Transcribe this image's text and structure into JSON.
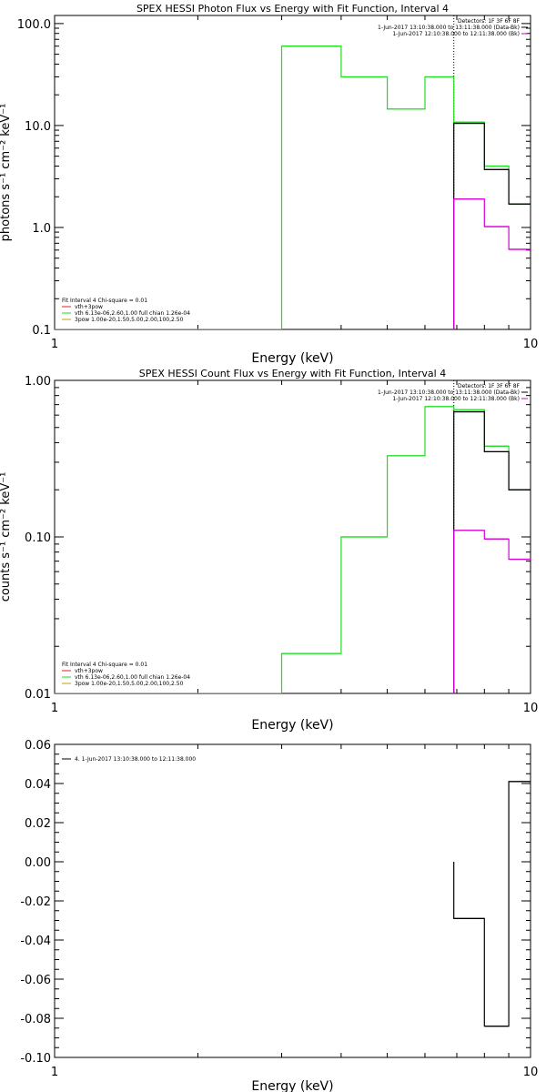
{
  "chart_data": [
    {
      "type": "line",
      "title": "SPEX HESSI Photon Flux vs Energy with Fit Function, Interval 4",
      "xlabel": "Energy (keV)",
      "ylabel": "photons s⁻¹ cm⁻² keV⁻¹",
      "x_scale": "log",
      "y_scale": "log",
      "xlim": [
        1,
        10
      ],
      "ylim": [
        0.1,
        120
      ],
      "x_ticks": [
        {
          "v": 1,
          "label": "1"
        },
        {
          "v": 10,
          "label": "10"
        }
      ],
      "y_ticks": [
        {
          "v": 0.1,
          "label": "0.1"
        },
        {
          "v": 1,
          "label": "1.0"
        },
        {
          "v": 10,
          "label": "10.0"
        },
        {
          "v": 100,
          "label": "100.0"
        }
      ],
      "legend_right": [
        {
          "text": "Detectors: 1F 3F 6F 8F",
          "color": "#000000"
        },
        {
          "text": "1-Jun-2017 13:10:38.000 to 13:11:38.000 (Data-Bk)",
          "color": "#000000"
        },
        {
          "text": "1-Jun-2017 12:10:38.000 to 12:11:38.000 (Bk)",
          "color": "#d400d4"
        }
      ],
      "legend_left": [
        {
          "text": "Fit Interval 4   Chi-square = 0.01",
          "color": null
        },
        {
          "text": "vth+3pow",
          "color": "#e0202e"
        },
        {
          "text": "vth 6.13e-06,2.60,1.00  full chian 1.26e-04",
          "color": "#22dd22"
        },
        {
          "text": "3pow 1.00e-20,1.50,5.00,2.00,100,2.50",
          "color": "#c8a000"
        }
      ],
      "marker_x": 6.9,
      "series": [
        {
          "color": "#22dd22",
          "edges": [
            1,
            3.0,
            4.0,
            5.0,
            6.0,
            6.9,
            8.0,
            9.0,
            10.0
          ],
          "values": [
            null,
            60,
            30,
            14.5,
            30,
            10.8,
            4.0,
            1.7
          ]
        },
        {
          "color": "#000000",
          "edges": [
            6.9,
            8.0,
            9.0,
            10.0
          ],
          "values": [
            10.5,
            3.7,
            1.7
          ]
        },
        {
          "color": "#d400d4",
          "edges": [
            6.9,
            8.0,
            9.0,
            10.0
          ],
          "values": [
            1.9,
            1.02,
            0.61
          ]
        }
      ]
    },
    {
      "type": "line",
      "title": "SPEX HESSI Count Flux vs Energy with Fit Function, Interval 4",
      "xlabel": "Energy (keV)",
      "ylabel": "counts s⁻¹ cm⁻² keV⁻¹",
      "x_scale": "log",
      "y_scale": "log",
      "xlim": [
        1,
        10
      ],
      "ylim": [
        0.01,
        1.0
      ],
      "x_ticks": [
        {
          "v": 1,
          "label": "1"
        },
        {
          "v": 10,
          "label": "10"
        }
      ],
      "y_ticks": [
        {
          "v": 0.01,
          "label": "0.01"
        },
        {
          "v": 0.1,
          "label": "0.10"
        },
        {
          "v": 1,
          "label": "1.00"
        }
      ],
      "legend_right": [
        {
          "text": "Detectors: 1F 3F 6F 8F",
          "color": "#000000"
        },
        {
          "text": "1-Jun-2017 13:10:38.000 to 13:11:38.000 (Data-Bk)",
          "color": "#000000"
        },
        {
          "text": "1-Jun-2017 12:10:38.000 to 12:11:38.000 (Bk)",
          "color": "#d400d4"
        }
      ],
      "legend_left": [
        {
          "text": "Fit Interval 4   Chi-square = 0.01",
          "color": null
        },
        {
          "text": "vth+3pow",
          "color": "#e0202e"
        },
        {
          "text": "vth 6.13e-06,2.60,1.00  full chian 1.26e-04",
          "color": "#22dd22"
        },
        {
          "text": "3pow 1.00e-20,1.50,5.00,2.00,100,2.50",
          "color": "#c8a000"
        }
      ],
      "marker_x": 6.9,
      "series": [
        {
          "color": "#22dd22",
          "edges": [
            1,
            3.0,
            4.0,
            5.0,
            6.0,
            6.9,
            8.0,
            9.0,
            10.0
          ],
          "values": [
            null,
            0.018,
            0.1,
            0.33,
            0.68,
            0.65,
            0.38,
            0.2
          ]
        },
        {
          "color": "#000000",
          "edges": [
            6.9,
            8.0,
            9.0,
            10.0
          ],
          "values": [
            0.63,
            0.35,
            0.2
          ]
        },
        {
          "color": "#d400d4",
          "edges": [
            6.9,
            8.0,
            9.0,
            10.0
          ],
          "values": [
            0.11,
            0.097,
            0.072
          ]
        }
      ]
    },
    {
      "type": "line",
      "title": "",
      "xlabel": "Energy (keV)",
      "ylabel": "",
      "x_scale": "log",
      "y_scale": "linear",
      "xlim": [
        1,
        10
      ],
      "ylim": [
        -0.1,
        0.06
      ],
      "x_ticks": [
        {
          "v": 1,
          "label": "1"
        },
        {
          "v": 10,
          "label": "10"
        }
      ],
      "y_ticks": [
        {
          "v": -0.1,
          "label": "-0.10"
        },
        {
          "v": -0.08,
          "label": "-0.08"
        },
        {
          "v": -0.06,
          "label": "-0.06"
        },
        {
          "v": -0.04,
          "label": "-0.04"
        },
        {
          "v": -0.02,
          "label": "-0.02"
        },
        {
          "v": 0.0,
          "label": "0.00"
        },
        {
          "v": 0.02,
          "label": "0.02"
        },
        {
          "v": 0.04,
          "label": "0.04"
        },
        {
          "v": 0.06,
          "label": "0.06"
        }
      ],
      "legend_right": [],
      "legend_left": [
        {
          "text": "4. 1-Jun-2017 13:10:38.000 to 12:11:38.000",
          "color": "#000000"
        }
      ],
      "marker_x": null,
      "series": [
        {
          "color": "#000000",
          "edges": [
            6.9,
            8.0,
            9.0,
            10.0
          ],
          "values": [
            -0.029,
            -0.084,
            0.041
          ]
        }
      ]
    }
  ]
}
